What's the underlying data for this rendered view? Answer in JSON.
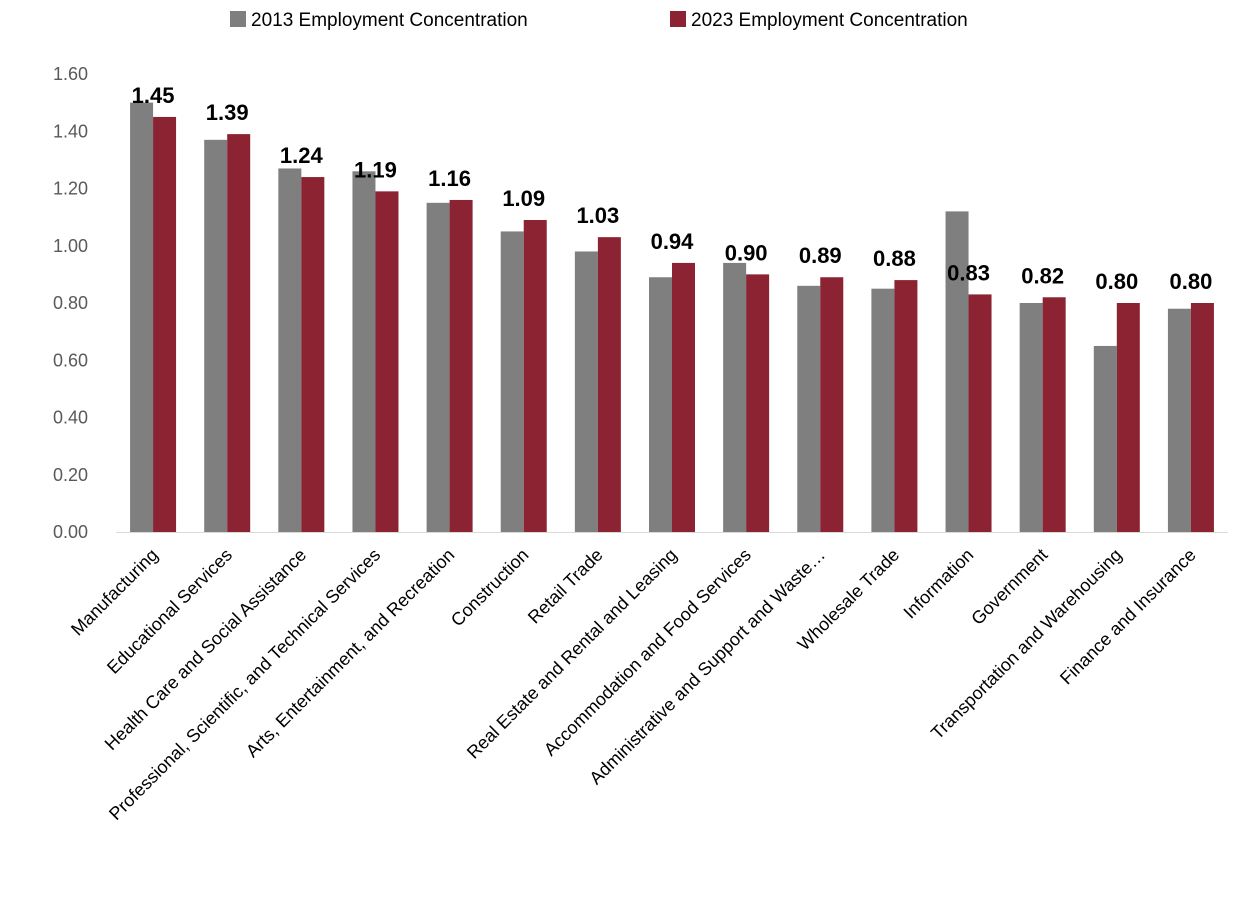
{
  "chart_data": {
    "type": "bar",
    "title": "",
    "xlabel": "",
    "ylabel": "",
    "ylim": [
      0,
      1.6
    ],
    "yticks": [
      "0.00",
      "0.20",
      "0.40",
      "0.60",
      "0.80",
      "1.00",
      "1.20",
      "1.40",
      "1.60"
    ],
    "grid": false,
    "legend_position": "top",
    "categories": [
      "Manufacturing",
      "Educational Services",
      "Health Care and Social Assistance",
      "Professional, Scientific, and Technical Services",
      "Arts, Entertainment, and Recreation",
      "Construction",
      "Retail Trade",
      "Real Estate and Rental and Leasing",
      "Accommodation and Food Services",
      "Administrative and Support and Waste…",
      "Wholesale Trade",
      "Information",
      "Government",
      "Transportation and Warehousing",
      "Finance and Insurance"
    ],
    "series": [
      {
        "name": "2013 Employment Concentration",
        "color": "#7f7f7f",
        "values": [
          1.5,
          1.37,
          1.27,
          1.26,
          1.15,
          1.05,
          0.98,
          0.89,
          0.94,
          0.86,
          0.85,
          1.12,
          0.8,
          0.65,
          0.78
        ]
      },
      {
        "name": "2023 Employment Concentration",
        "color": "#8b2332",
        "values": [
          1.45,
          1.39,
          1.24,
          1.19,
          1.16,
          1.09,
          1.03,
          0.94,
          0.9,
          0.89,
          0.88,
          0.83,
          0.82,
          0.8,
          0.8
        ]
      }
    ],
    "data_labels": [
      "1.45",
      "1.39",
      "1.24",
      "1.19",
      "1.16",
      "1.09",
      "1.03",
      "0.94",
      "0.90",
      "0.89",
      "0.88",
      "0.83",
      "0.82",
      "0.80",
      "0.80"
    ]
  }
}
